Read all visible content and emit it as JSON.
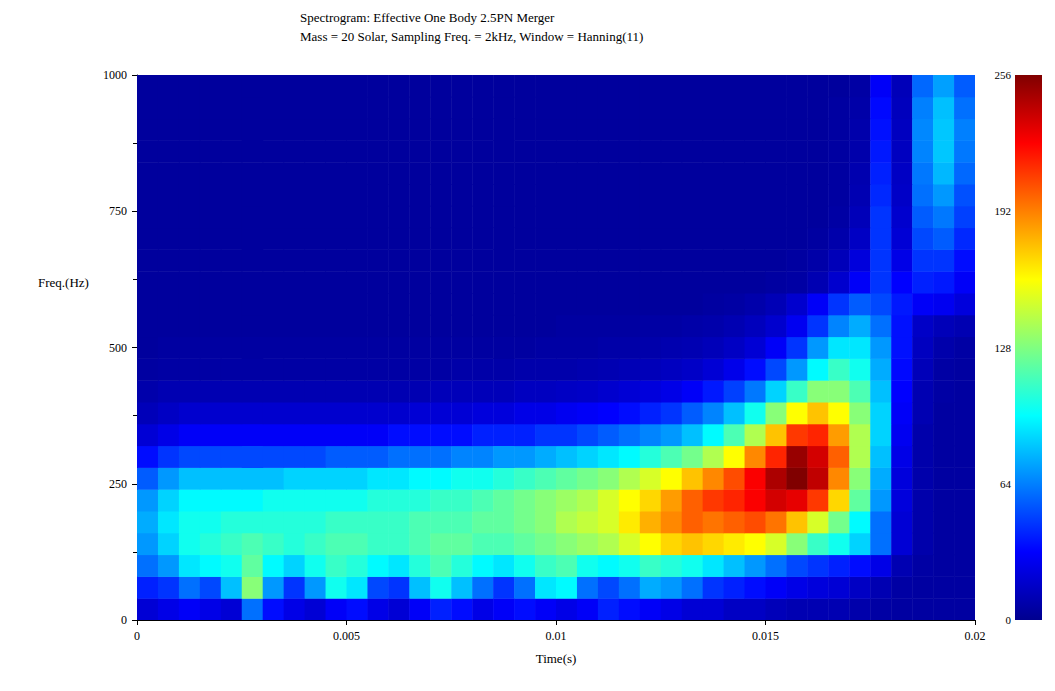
{
  "chart_data": {
    "type": "heatmap",
    "title": "Spectrogram: Effective One Body 2.5PN Merger",
    "subtitle": "Mass = 20 Solar, Sampling Freq. = 2kHz, Window = Hanning(11)",
    "x_label": "Time(s)",
    "y_label": "Freq.(Hz)",
    "xlim": [
      0,
      0.02
    ],
    "ylim": [
      0,
      1000
    ],
    "xticks": [
      0,
      0.005,
      0.01,
      0.015,
      0.02
    ],
    "yticks": [
      0,
      250,
      500,
      750,
      1000
    ],
    "time_bins": [
      0,
      0.0005,
      0.001,
      0.0015,
      0.002,
      0.0025,
      0.003,
      0.0035,
      0.004,
      0.0045,
      0.005,
      0.0055,
      0.006,
      0.0065,
      0.007,
      0.0075,
      0.008,
      0.0085,
      0.009,
      0.0095,
      0.01,
      0.0105,
      0.011,
      0.0115,
      0.012,
      0.0125,
      0.013,
      0.0135,
      0.014,
      0.0145,
      0.015,
      0.0155,
      0.016,
      0.0165,
      0.017,
      0.0175,
      0.018,
      0.0185,
      0.019,
      0.0195,
      0.02
    ],
    "freq_bins": [
      0,
      40,
      80,
      120,
      160,
      200,
      240,
      280,
      320,
      360,
      400,
      440,
      480,
      520,
      560,
      600,
      640,
      680,
      720,
      760,
      800,
      840,
      880,
      920,
      960,
      1000
    ],
    "cells": [
      [
        20,
        25,
        30,
        25,
        20,
        60,
        35,
        25,
        20,
        30,
        35,
        25,
        20,
        30,
        40,
        35,
        25,
        30,
        35,
        30,
        25,
        30,
        40,
        35,
        30,
        25,
        20,
        20,
        15,
        15,
        12,
        10,
        10,
        10,
        8,
        6,
        5,
        5,
        5,
        5
      ],
      [
        40,
        45,
        60,
        50,
        80,
        130,
        70,
        45,
        70,
        100,
        90,
        50,
        45,
        80,
        100,
        80,
        60,
        45,
        60,
        90,
        95,
        60,
        50,
        60,
        75,
        70,
        60,
        45,
        40,
        35,
        30,
        25,
        22,
        20,
        15,
        10,
        6,
        5,
        5,
        5
      ],
      [
        60,
        70,
        90,
        95,
        100,
        120,
        95,
        85,
        100,
        110,
        105,
        95,
        90,
        105,
        115,
        105,
        95,
        90,
        100,
        110,
        115,
        100,
        95,
        100,
        110,
        105,
        100,
        90,
        80,
        70,
        60,
        50,
        45,
        40,
        35,
        25,
        10,
        6,
        5,
        5
      ],
      [
        70,
        85,
        100,
        105,
        110,
        115,
        110,
        105,
        110,
        115,
        115,
        110,
        110,
        115,
        120,
        120,
        115,
        115,
        120,
        125,
        130,
        135,
        140,
        150,
        160,
        170,
        175,
        170,
        165,
        160,
        150,
        130,
        110,
        100,
        85,
        60,
        20,
        8,
        5,
        5
      ],
      [
        75,
        90,
        100,
        100,
        105,
        105,
        105,
        105,
        105,
        110,
        110,
        110,
        110,
        115,
        115,
        115,
        120,
        120,
        125,
        130,
        140,
        145,
        150,
        165,
        180,
        190,
        200,
        195,
        200,
        205,
        195,
        175,
        150,
        125,
        95,
        60,
        20,
        8,
        5,
        5
      ],
      [
        70,
        85,
        95,
        95,
        95,
        95,
        100,
        100,
        100,
        100,
        100,
        105,
        105,
        105,
        110,
        110,
        115,
        120,
        125,
        130,
        135,
        140,
        150,
        160,
        170,
        185,
        200,
        210,
        215,
        225,
        235,
        230,
        210,
        170,
        120,
        70,
        22,
        8,
        5,
        5
      ],
      [
        55,
        70,
        80,
        80,
        80,
        80,
        80,
        85,
        85,
        85,
        85,
        90,
        90,
        95,
        95,
        100,
        100,
        105,
        110,
        115,
        120,
        125,
        130,
        140,
        150,
        160,
        175,
        190,
        205,
        225,
        245,
        256,
        240,
        190,
        130,
        75,
        22,
        8,
        5,
        5
      ],
      [
        35,
        45,
        50,
        50,
        50,
        50,
        50,
        50,
        50,
        55,
        55,
        55,
        60,
        60,
        60,
        65,
        65,
        70,
        70,
        75,
        80,
        85,
        90,
        95,
        105,
        115,
        125,
        140,
        160,
        190,
        215,
        250,
        235,
        200,
        140,
        80,
        25,
        8,
        5,
        5
      ],
      [
        20,
        25,
        30,
        30,
        30,
        30,
        30,
        30,
        30,
        30,
        30,
        30,
        35,
        35,
        35,
        35,
        40,
        40,
        40,
        45,
        45,
        50,
        55,
        60,
        65,
        70,
        80,
        95,
        115,
        140,
        175,
        210,
        215,
        185,
        140,
        85,
        28,
        8,
        5,
        5
      ],
      [
        12,
        15,
        18,
        18,
        18,
        18,
        18,
        18,
        18,
        18,
        18,
        18,
        18,
        20,
        20,
        20,
        22,
        22,
        25,
        25,
        28,
        30,
        32,
        35,
        40,
        45,
        55,
        65,
        80,
        100,
        130,
        160,
        175,
        160,
        130,
        85,
        30,
        10,
        5,
        5
      ],
      [
        8,
        10,
        10,
        10,
        10,
        10,
        10,
        10,
        10,
        10,
        10,
        10,
        10,
        10,
        12,
        12,
        12,
        12,
        14,
        14,
        15,
        16,
        18,
        20,
        22,
        25,
        30,
        38,
        48,
        62,
        85,
        110,
        130,
        130,
        115,
        80,
        32,
        10,
        6,
        5
      ],
      [
        5,
        6,
        6,
        6,
        6,
        6,
        6,
        6,
        6,
        6,
        6,
        6,
        6,
        6,
        6,
        7,
        7,
        7,
        8,
        8,
        8,
        9,
        10,
        11,
        12,
        14,
        16,
        20,
        26,
        35,
        50,
        70,
        95,
        110,
        100,
        75,
        34,
        12,
        6,
        5
      ],
      [
        4,
        5,
        5,
        5,
        5,
        5,
        5,
        5,
        5,
        5,
        5,
        5,
        5,
        5,
        5,
        5,
        5,
        5,
        5,
        6,
        6,
        6,
        7,
        7,
        8,
        9,
        10,
        12,
        15,
        20,
        30,
        45,
        70,
        90,
        90,
        70,
        36,
        14,
        8,
        6
      ],
      [
        4,
        4,
        4,
        4,
        4,
        4,
        4,
        4,
        4,
        4,
        4,
        4,
        4,
        4,
        4,
        4,
        4,
        4,
        4,
        4,
        5,
        5,
        5,
        5,
        6,
        6,
        7,
        8,
        10,
        13,
        18,
        28,
        45,
        65,
        75,
        60,
        36,
        16,
        12,
        10
      ],
      [
        4,
        4,
        4,
        4,
        4,
        4,
        4,
        4,
        4,
        4,
        4,
        4,
        4,
        4,
        4,
        4,
        4,
        4,
        4,
        4,
        4,
        4,
        4,
        4,
        4,
        4,
        4,
        5,
        6,
        8,
        11,
        18,
        30,
        45,
        55,
        50,
        38,
        30,
        28,
        22
      ],
      [
        4,
        4,
        4,
        4,
        4,
        4,
        4,
        4,
        4,
        4,
        4,
        4,
        4,
        4,
        4,
        4,
        4,
        4,
        4,
        4,
        4,
        4,
        4,
        4,
        4,
        4,
        4,
        4,
        4,
        4,
        5,
        6,
        10,
        18,
        30,
        45,
        32,
        40,
        38,
        30
      ],
      [
        4,
        4,
        4,
        4,
        4,
        4,
        4,
        4,
        4,
        4,
        4,
        4,
        4,
        4,
        4,
        4,
        4,
        4,
        4,
        4,
        4,
        4,
        4,
        4,
        4,
        4,
        4,
        4,
        4,
        4,
        4,
        5,
        7,
        12,
        22,
        45,
        25,
        45,
        45,
        35
      ],
      [
        4,
        4,
        4,
        4,
        4,
        4,
        4,
        4,
        4,
        4,
        4,
        4,
        4,
        4,
        4,
        4,
        4,
        4,
        4,
        4,
        4,
        4,
        4,
        4,
        4,
        4,
        4,
        4,
        4,
        4,
        4,
        4,
        5,
        8,
        15,
        45,
        20,
        50,
        55,
        42
      ],
      [
        4,
        4,
        4,
        4,
        4,
        4,
        4,
        4,
        4,
        4,
        4,
        4,
        4,
        4,
        4,
        4,
        4,
        4,
        4,
        4,
        4,
        4,
        4,
        4,
        4,
        4,
        4,
        4,
        4,
        4,
        4,
        4,
        4,
        6,
        12,
        45,
        18,
        55,
        62,
        48
      ],
      [
        4,
        4,
        4,
        4,
        4,
        4,
        4,
        4,
        4,
        4,
        4,
        4,
        4,
        4,
        4,
        4,
        4,
        4,
        4,
        4,
        4,
        4,
        4,
        4,
        4,
        4,
        4,
        4,
        4,
        4,
        4,
        4,
        4,
        5,
        10,
        42,
        16,
        60,
        70,
        52
      ],
      [
        4,
        4,
        4,
        4,
        4,
        4,
        4,
        4,
        4,
        4,
        4,
        4,
        4,
        4,
        4,
        4,
        4,
        4,
        4,
        4,
        4,
        4,
        4,
        4,
        4,
        4,
        4,
        4,
        4,
        4,
        4,
        4,
        4,
        5,
        9,
        40,
        15,
        62,
        78,
        58
      ],
      [
        4,
        4,
        4,
        4,
        4,
        4,
        4,
        4,
        4,
        4,
        4,
        4,
        4,
        4,
        4,
        4,
        4,
        4,
        4,
        4,
        4,
        4,
        4,
        4,
        4,
        4,
        4,
        4,
        4,
        4,
        4,
        4,
        4,
        5,
        8,
        38,
        14,
        65,
        82,
        62
      ],
      [
        4,
        4,
        4,
        4,
        4,
        4,
        4,
        4,
        4,
        4,
        4,
        4,
        4,
        4,
        4,
        4,
        4,
        4,
        4,
        4,
        4,
        4,
        4,
        4,
        4,
        4,
        4,
        4,
        4,
        4,
        4,
        4,
        4,
        5,
        8,
        36,
        14,
        66,
        82,
        64
      ],
      [
        4,
        4,
        4,
        4,
        4,
        4,
        4,
        4,
        4,
        4,
        4,
        4,
        4,
        4,
        4,
        4,
        4,
        4,
        4,
        4,
        4,
        4,
        4,
        4,
        4,
        4,
        4,
        4,
        4,
        4,
        4,
        4,
        4,
        5,
        7,
        34,
        13,
        64,
        80,
        60
      ],
      [
        4,
        4,
        4,
        4,
        4,
        4,
        4,
        4,
        4,
        4,
        4,
        4,
        4,
        4,
        4,
        4,
        4,
        4,
        4,
        4,
        4,
        4,
        4,
        4,
        4,
        4,
        4,
        4,
        4,
        4,
        4,
        4,
        4,
        4,
        6,
        30,
        12,
        58,
        72,
        55
      ]
    ],
    "color_range": [
      0,
      256
    ],
    "color_ticks": [
      0,
      64,
      128,
      192,
      256
    ]
  }
}
